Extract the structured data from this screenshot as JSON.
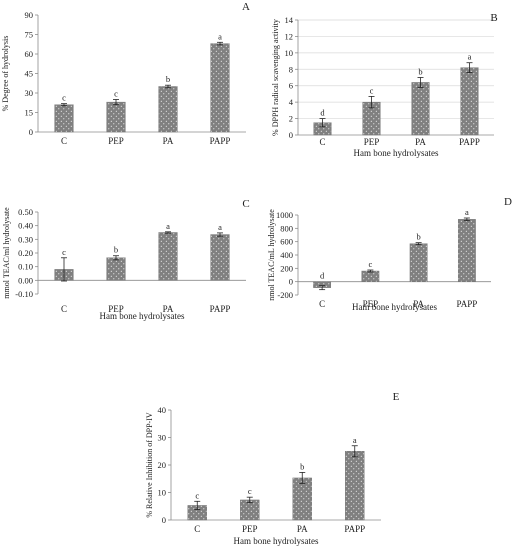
{
  "chart_data": [
    {
      "type": "bar",
      "panel_label": "A",
      "categories": [
        "C",
        "PEP",
        "PA",
        "PAPP"
      ],
      "values": [
        21,
        23,
        35,
        68
      ],
      "errors": [
        0.8,
        2.0,
        1.0,
        1.0
      ],
      "significance": [
        "c",
        "c",
        "b",
        "a"
      ],
      "ylabel": "% Degree of hydrolysis",
      "xlabel": "",
      "ylim": [
        0,
        90
      ],
      "yticks": [
        0,
        15,
        30,
        45,
        60,
        75,
        90
      ],
      "ytick_labels": [
        "0",
        "15",
        "30",
        "45",
        "60",
        "75",
        "90"
      ],
      "grid": false
    },
    {
      "type": "bar",
      "panel_label": "B",
      "categories": [
        "C",
        "PEP",
        "PA",
        "PAPP"
      ],
      "values": [
        1.5,
        4.0,
        6.4,
        8.2
      ],
      "errors": [
        0.5,
        0.7,
        0.6,
        0.6
      ],
      "significance": [
        "d",
        "c",
        "b",
        "a"
      ],
      "ylabel": "% DPPH radical scavenging activity",
      "xlabel": "Ham bone hydrolysates",
      "ylim": [
        0,
        14
      ],
      "yticks": [
        0,
        2,
        4,
        6,
        8,
        10,
        12,
        14
      ],
      "ytick_labels": [
        "0",
        "2",
        "4",
        "6",
        "8",
        "10",
        "12",
        "14"
      ],
      "grid": true
    },
    {
      "type": "bar",
      "panel_label": "C",
      "categories": [
        "C",
        "PEP",
        "PA",
        "PAPP"
      ],
      "values": [
        0.08,
        0.165,
        0.35,
        0.335
      ],
      "errors": [
        0.085,
        0.015,
        0.005,
        0.012
      ],
      "significance": [
        "c",
        "b",
        "a",
        "a"
      ],
      "ylabel": "mmol TEAC/ml hydrolysate",
      "xlabel": "Ham bone hydrolysates",
      "ylim": [
        -0.1,
        0.5
      ],
      "yticks": [
        -0.1,
        0,
        0.1,
        0.2,
        0.3,
        0.4,
        0.5
      ],
      "ytick_labels": [
        "-0.10",
        "0.00",
        "0.10",
        "0.20",
        "0.30",
        "0.40",
        "0.50"
      ],
      "grid": false
    },
    {
      "type": "bar",
      "panel_label": "D",
      "categories": [
        "C",
        "PEP",
        "PA",
        "PAPP"
      ],
      "values": [
        -90,
        160,
        570,
        935
      ],
      "errors": [
        30,
        15,
        15,
        20
      ],
      "significance": [
        "d",
        "c",
        "b",
        "a"
      ],
      "ylabel": "nmol TEAC/mL hydrolysate",
      "xlabel": "Ham bone hydrolysates",
      "ylim": [
        -200,
        1000
      ],
      "yticks": [
        -200,
        0,
        200,
        400,
        600,
        800,
        1000
      ],
      "ytick_labels": [
        "-200",
        "0",
        "200",
        "400",
        "600",
        "800",
        "1000"
      ],
      "grid": false
    },
    {
      "type": "bar",
      "panel_label": "E",
      "categories": [
        "C",
        "PEP",
        "PA",
        "PAPP"
      ],
      "values": [
        5.3,
        7.3,
        15.3,
        25.0
      ],
      "errors": [
        1.5,
        1.0,
        2.0,
        2.0
      ],
      "significance": [
        "c",
        "c",
        "b",
        "a"
      ],
      "ylabel": "% Relative Inhibition of DPP-IV",
      "xlabel": "Ham bone hydrolysates",
      "ylim": [
        0,
        40
      ],
      "yticks": [
        0,
        10,
        20,
        30,
        40
      ],
      "ytick_labels": [
        "0",
        "10",
        "20",
        "30",
        "40"
      ],
      "grid": false
    }
  ],
  "colors": {
    "bar": "#808080",
    "dots": "#ffffff",
    "axis": "#8c8c8c",
    "grid": "#d9d9d9",
    "text": "#222222"
  }
}
